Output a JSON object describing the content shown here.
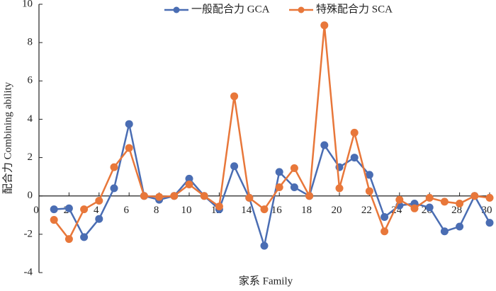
{
  "chart_data": {
    "type": "line",
    "xlabel": "家系 Family",
    "ylabel": "配合力 Combining ability",
    "x": [
      1,
      2,
      3,
      4,
      5,
      6,
      7,
      8,
      9,
      10,
      11,
      12,
      13,
      14,
      15,
      16,
      17,
      18,
      19,
      20,
      21,
      22,
      23,
      24,
      25,
      26,
      27,
      28,
      29,
      30
    ],
    "series": [
      {
        "name": "一般配合力 GCA",
        "color": "#4a6db3",
        "values": [
          -0.7,
          -0.65,
          -2.15,
          -1.2,
          0.4,
          3.75,
          0,
          -0.2,
          0,
          0.9,
          0,
          -0.7,
          1.55,
          -0.1,
          -2.6,
          1.25,
          0.45,
          0,
          2.65,
          1.5,
          2.0,
          1.1,
          -1.1,
          -0.5,
          -0.4,
          -0.6,
          -1.85,
          -1.6,
          0,
          -1.4
        ]
      },
      {
        "name": "特殊配合力 SCA",
        "color": "#e8773a",
        "values": [
          -1.25,
          -2.25,
          -0.7,
          -0.25,
          1.5,
          2.5,
          0,
          -0.05,
          0,
          0.6,
          0,
          -0.55,
          5.2,
          -0.1,
          -0.7,
          0.45,
          1.45,
          0,
          8.9,
          0.4,
          3.3,
          0.25,
          -1.85,
          -0.2,
          -0.65,
          -0.1,
          -0.3,
          -0.4,
          0,
          -0.1
        ]
      }
    ],
    "xlim": [
      0,
      30
    ],
    "xticks": [
      0,
      2,
      4,
      6,
      8,
      10,
      12,
      14,
      16,
      18,
      20,
      22,
      24,
      26,
      28,
      30
    ],
    "ylim": [
      -4,
      10
    ],
    "yticks": [
      -4,
      -2,
      0,
      2,
      4,
      6,
      8,
      10
    ],
    "legend": "top"
  }
}
